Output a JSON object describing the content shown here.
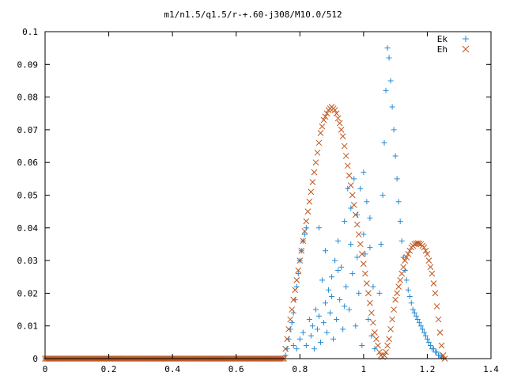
{
  "chart_data": {
    "type": "scatter",
    "title": "m1/n1.5/q1.5/r-+.60-j308/M10.0/512",
    "xlabel": "",
    "ylabel": "",
    "xlim": [
      0,
      1.4
    ],
    "ylim": [
      0,
      0.1
    ],
    "x_ticks": [
      "0",
      "0.2",
      "0.4",
      "0.6",
      "0.8",
      "1",
      "1.2",
      "1.4"
    ],
    "y_ticks": [
      "0",
      "0.01",
      "0.02",
      "0.03",
      "0.04",
      "0.05",
      "0.06",
      "0.07",
      "0.08",
      "0.09",
      "0.1"
    ],
    "grid": false,
    "legend_position": "top-right",
    "series": [
      {
        "name": "Ek",
        "marker": "plus",
        "color": "#2a8bd2",
        "points": [
          [
            0.755,
            0.001
          ],
          [
            0.76,
            0.003
          ],
          [
            0.765,
            0.006
          ],
          [
            0.77,
            0.009
          ],
          [
            0.775,
            0.011
          ],
          [
            0.78,
            0.014
          ],
          [
            0.785,
            0.018
          ],
          [
            0.79,
            0.022
          ],
          [
            0.795,
            0.026
          ],
          [
            0.8,
            0.03
          ],
          [
            0.805,
            0.033
          ],
          [
            0.81,
            0.036
          ],
          [
            0.815,
            0.038
          ],
          [
            0.82,
            0.04
          ],
          [
            0.78,
            0.004
          ],
          [
            0.79,
            0.003
          ],
          [
            0.8,
            0.006
          ],
          [
            0.81,
            0.008
          ],
          [
            0.82,
            0.004
          ],
          [
            0.83,
            0.012
          ],
          [
            0.835,
            0.007
          ],
          [
            0.84,
            0.01
          ],
          [
            0.845,
            0.003
          ],
          [
            0.85,
            0.015
          ],
          [
            0.855,
            0.009
          ],
          [
            0.86,
            0.013
          ],
          [
            0.865,
            0.005
          ],
          [
            0.87,
            0.024
          ],
          [
            0.875,
            0.011
          ],
          [
            0.88,
            0.017
          ],
          [
            0.885,
            0.008
          ],
          [
            0.89,
            0.021
          ],
          [
            0.895,
            0.014
          ],
          [
            0.9,
            0.025
          ],
          [
            0.905,
            0.006
          ],
          [
            0.91,
            0.03
          ],
          [
            0.915,
            0.012
          ],
          [
            0.92,
            0.036
          ],
          [
            0.925,
            0.018
          ],
          [
            0.93,
            0.028
          ],
          [
            0.935,
            0.009
          ],
          [
            0.94,
            0.042
          ],
          [
            0.945,
            0.022
          ],
          [
            0.95,
            0.052
          ],
          [
            0.955,
            0.015
          ],
          [
            0.96,
            0.046
          ],
          [
            0.965,
            0.026
          ],
          [
            0.97,
            0.055
          ],
          [
            0.975,
            0.01
          ],
          [
            0.98,
            0.044
          ],
          [
            0.985,
            0.02
          ],
          [
            0.99,
            0.052
          ],
          [
            0.995,
            0.004
          ],
          [
            1.0,
            0.057
          ],
          [
            1.005,
            0.032
          ],
          [
            1.01,
            0.048
          ],
          [
            1.015,
            0.012
          ],
          [
            1.02,
            0.034
          ],
          [
            1.025,
            0.007
          ],
          [
            1.03,
            0.022
          ],
          [
            1.035,
            0.003
          ],
          [
            0.86,
            0.04
          ],
          [
            0.88,
            0.033
          ],
          [
            0.9,
            0.019
          ],
          [
            0.92,
            0.027
          ],
          [
            0.94,
            0.016
          ],
          [
            0.96,
            0.035
          ],
          [
            0.98,
            0.031
          ],
          [
            1.0,
            0.038
          ],
          [
            1.02,
            0.043
          ],
          [
            1.05,
            0.02
          ],
          [
            1.055,
            0.035
          ],
          [
            1.06,
            0.05
          ],
          [
            1.065,
            0.066
          ],
          [
            1.07,
            0.082
          ],
          [
            1.075,
            0.095
          ],
          [
            1.08,
            0.092
          ],
          [
            1.085,
            0.085
          ],
          [
            1.09,
            0.077
          ],
          [
            1.095,
            0.07
          ],
          [
            1.1,
            0.062
          ],
          [
            1.105,
            0.055
          ],
          [
            1.11,
            0.048
          ],
          [
            1.115,
            0.042
          ],
          [
            1.12,
            0.036
          ],
          [
            1.125,
            0.031
          ],
          [
            1.13,
            0.027
          ],
          [
            1.135,
            0.024
          ],
          [
            1.14,
            0.021
          ],
          [
            1.145,
            0.019
          ],
          [
            1.15,
            0.017
          ],
          [
            1.155,
            0.015
          ],
          [
            1.16,
            0.014
          ],
          [
            1.165,
            0.013
          ],
          [
            1.17,
            0.012
          ],
          [
            1.175,
            0.011
          ],
          [
            1.18,
            0.01
          ],
          [
            1.185,
            0.009
          ],
          [
            1.19,
            0.008
          ],
          [
            1.195,
            0.007
          ],
          [
            1.2,
            0.006
          ],
          [
            1.205,
            0.005
          ],
          [
            1.21,
            0.004
          ],
          [
            1.215,
            0.003
          ],
          [
            1.22,
            0.003
          ],
          [
            1.225,
            0.002
          ],
          [
            1.23,
            0.002
          ],
          [
            1.235,
            0.001
          ],
          [
            1.24,
            0.001
          ],
          [
            1.245,
            0.0005
          ],
          [
            1.25,
            0.0002
          ]
        ]
      },
      {
        "name": "Eh",
        "marker": "cross",
        "color": "#c0561e",
        "points": [
          [
            0.75,
            0.0
          ],
          [
            0.755,
            0.003
          ],
          [
            0.76,
            0.006
          ],
          [
            0.765,
            0.009
          ],
          [
            0.77,
            0.012
          ],
          [
            0.775,
            0.015
          ],
          [
            0.78,
            0.018
          ],
          [
            0.785,
            0.021
          ],
          [
            0.79,
            0.024
          ],
          [
            0.795,
            0.027
          ],
          [
            0.8,
            0.03
          ],
          [
            0.805,
            0.033
          ],
          [
            0.81,
            0.036
          ],
          [
            0.815,
            0.039
          ],
          [
            0.82,
            0.042
          ],
          [
            0.825,
            0.045
          ],
          [
            0.83,
            0.048
          ],
          [
            0.835,
            0.051
          ],
          [
            0.84,
            0.054
          ],
          [
            0.845,
            0.057
          ],
          [
            0.85,
            0.06
          ],
          [
            0.855,
            0.063
          ],
          [
            0.86,
            0.066
          ],
          [
            0.865,
            0.069
          ],
          [
            0.87,
            0.071
          ],
          [
            0.875,
            0.073
          ],
          [
            0.88,
            0.074
          ],
          [
            0.885,
            0.075
          ],
          [
            0.89,
            0.076
          ],
          [
            0.895,
            0.0765
          ],
          [
            0.9,
            0.077
          ],
          [
            0.905,
            0.0765
          ],
          [
            0.91,
            0.076
          ],
          [
            0.915,
            0.075
          ],
          [
            0.92,
            0.0735
          ],
          [
            0.925,
            0.072
          ],
          [
            0.93,
            0.07
          ],
          [
            0.935,
            0.068
          ],
          [
            0.94,
            0.065
          ],
          [
            0.945,
            0.062
          ],
          [
            0.95,
            0.059
          ],
          [
            0.955,
            0.056
          ],
          [
            0.96,
            0.053
          ],
          [
            0.965,
            0.05
          ],
          [
            0.97,
            0.047
          ],
          [
            0.975,
            0.044
          ],
          [
            0.98,
            0.041
          ],
          [
            0.985,
            0.038
          ],
          [
            0.99,
            0.035
          ],
          [
            0.995,
            0.032
          ],
          [
            1.0,
            0.029
          ],
          [
            1.005,
            0.026
          ],
          [
            1.01,
            0.023
          ],
          [
            1.015,
            0.02
          ],
          [
            1.02,
            0.017
          ],
          [
            1.025,
            0.014
          ],
          [
            1.03,
            0.011
          ],
          [
            1.035,
            0.008
          ],
          [
            1.04,
            0.006
          ],
          [
            1.045,
            0.004
          ],
          [
            1.05,
            0.002
          ],
          [
            1.055,
            0.001
          ],
          [
            1.06,
            0.0005
          ],
          [
            1.065,
            0.001
          ],
          [
            1.07,
            0.002
          ],
          [
            1.075,
            0.004
          ],
          [
            1.08,
            0.006
          ],
          [
            1.085,
            0.009
          ],
          [
            1.09,
            0.012
          ],
          [
            1.095,
            0.015
          ],
          [
            1.1,
            0.018
          ],
          [
            1.105,
            0.02
          ],
          [
            1.11,
            0.022
          ],
          [
            1.115,
            0.024
          ],
          [
            1.12,
            0.026
          ],
          [
            1.125,
            0.028
          ],
          [
            1.13,
            0.03
          ],
          [
            1.135,
            0.031
          ],
          [
            1.14,
            0.032
          ],
          [
            1.145,
            0.033
          ],
          [
            1.15,
            0.034
          ],
          [
            1.155,
            0.0345
          ],
          [
            1.16,
            0.035
          ],
          [
            1.165,
            0.0352
          ],
          [
            1.17,
            0.0353
          ],
          [
            1.175,
            0.0352
          ],
          [
            1.18,
            0.035
          ],
          [
            1.185,
            0.0345
          ],
          [
            1.19,
            0.034
          ],
          [
            1.195,
            0.033
          ],
          [
            1.2,
            0.032
          ],
          [
            1.205,
            0.03
          ],
          [
            1.21,
            0.028
          ],
          [
            1.215,
            0.026
          ],
          [
            1.22,
            0.023
          ],
          [
            1.225,
            0.02
          ],
          [
            1.23,
            0.016
          ],
          [
            1.235,
            0.012
          ],
          [
            1.24,
            0.008
          ],
          [
            1.245,
            0.004
          ],
          [
            1.25,
            0.001
          ],
          [
            1.255,
            0.0
          ]
        ]
      }
    ]
  }
}
